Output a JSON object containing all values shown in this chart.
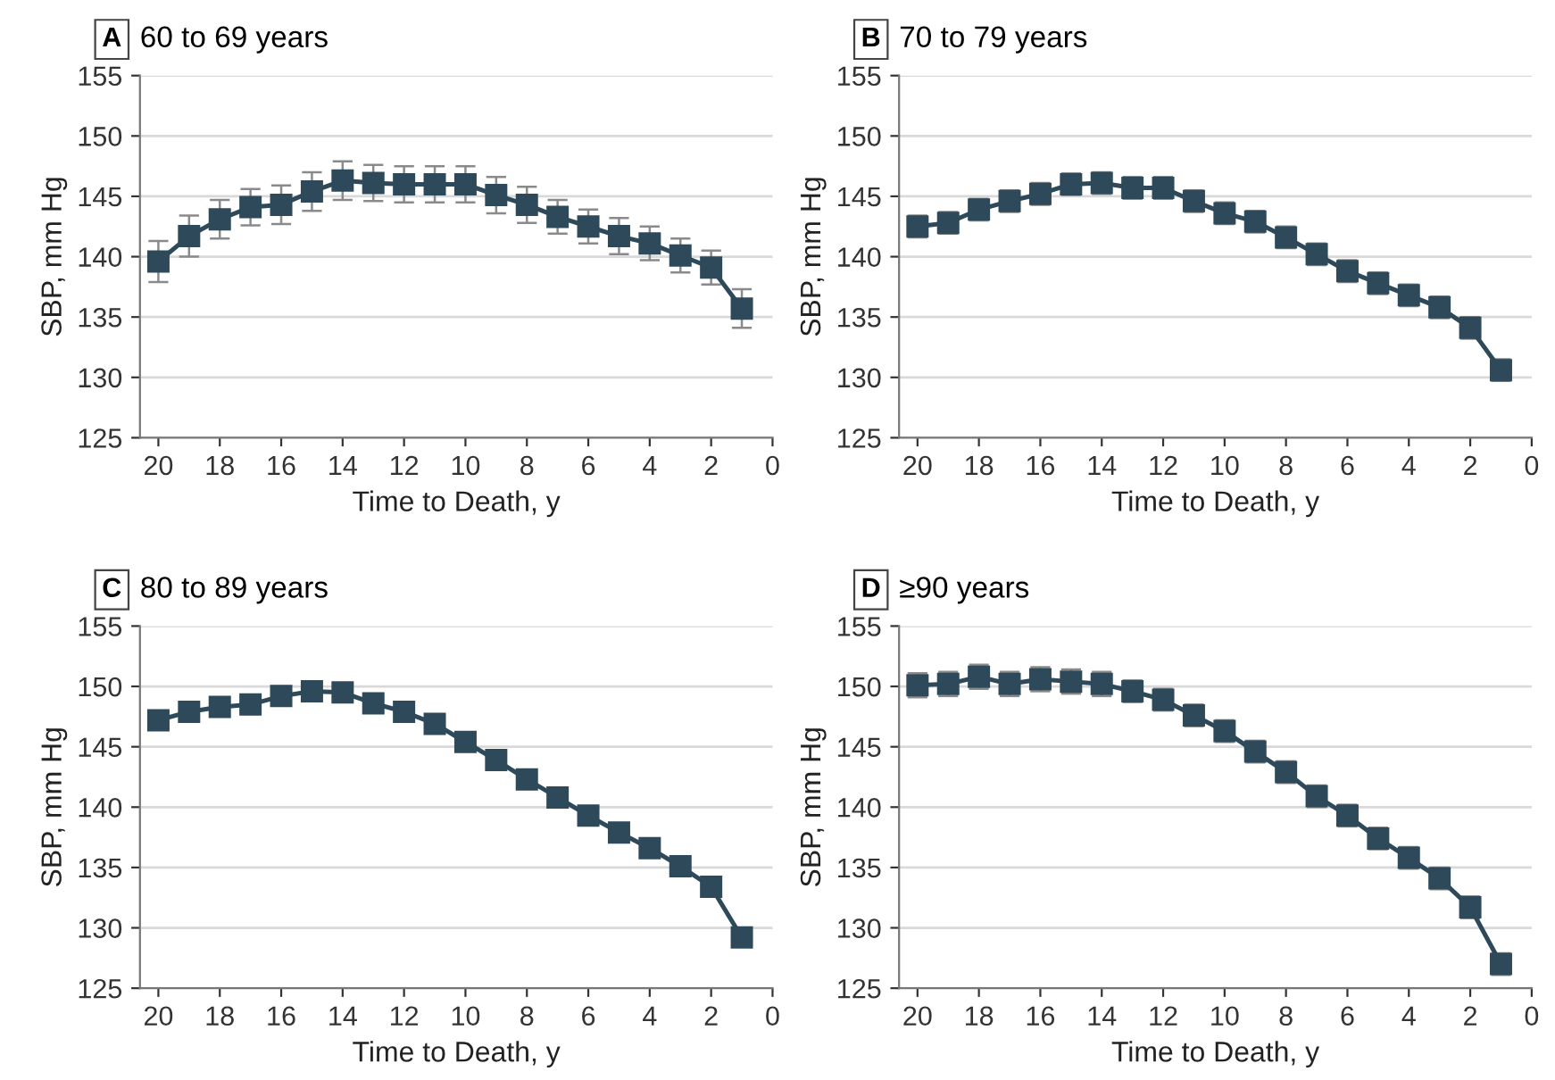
{
  "chart_data": [
    {
      "type": "line",
      "title": "60 to 69 years",
      "annotations": [
        "A"
      ],
      "xlabel": "Time to Death, y",
      "ylabel": "SBP, mm Hg",
      "x": [
        20,
        19,
        18,
        17,
        16,
        15,
        14,
        13,
        12,
        11,
        10,
        9,
        8,
        7,
        6,
        5,
        4,
        3,
        2,
        1
      ],
      "marker": "square",
      "grid": "y",
      "xlim": [
        20.6,
        0
      ],
      "xticks": [
        20,
        18,
        16,
        14,
        12,
        10,
        8,
        6,
        4,
        2,
        0
      ],
      "ylim": [
        125,
        155
      ],
      "yticks": [
        125,
        130,
        135,
        140,
        145,
        150,
        155
      ],
      "series": [
        {
          "color": "#2e4a5a",
          "values": [
            139.6,
            141.7,
            143.1,
            144.1,
            144.3,
            145.4,
            146.3,
            146.1,
            146.0,
            146.0,
            146.0,
            145.1,
            144.3,
            143.3,
            142.5,
            141.7,
            141.1,
            140.1,
            139.1,
            135.7
          ],
          "errors": [
            1.7,
            1.7,
            1.6,
            1.5,
            1.6,
            1.6,
            1.6,
            1.5,
            1.5,
            1.5,
            1.5,
            1.5,
            1.5,
            1.4,
            1.4,
            1.5,
            1.4,
            1.4,
            1.4,
            1.6
          ]
        }
      ]
    },
    {
      "type": "line",
      "title": "70 to 79 years",
      "annotations": [
        "B"
      ],
      "xlabel": "Time to Death, y",
      "ylabel": "SBP, mm Hg",
      "x": [
        20,
        19,
        18,
        17,
        16,
        15,
        14,
        13,
        12,
        11,
        10,
        9,
        8,
        7,
        6,
        5,
        4,
        3,
        2,
        1
      ],
      "marker": "square",
      "grid": "y",
      "xlim": [
        20.6,
        0
      ],
      "xticks": [
        20,
        18,
        16,
        14,
        12,
        10,
        8,
        6,
        4,
        2,
        0
      ],
      "ylim": [
        125,
        155
      ],
      "yticks": [
        125,
        130,
        135,
        140,
        145,
        150,
        155
      ],
      "series": [
        {
          "color": "#2e4a5a",
          "values": [
            142.5,
            142.8,
            143.9,
            144.6,
            145.2,
            146.0,
            146.1,
            145.7,
            145.7,
            144.6,
            143.6,
            142.9,
            141.6,
            140.2,
            138.8,
            137.8,
            136.8,
            135.8,
            134.1,
            130.6
          ],
          "errors": [
            0.9,
            0.9,
            0.9,
            0.9,
            0.9,
            0.9,
            0.9,
            0.9,
            0.9,
            0.9,
            0.9,
            0.9,
            0.9,
            0.9,
            0.9,
            0.9,
            0.9,
            0.9,
            0.9,
            0.9
          ]
        }
      ]
    },
    {
      "type": "line",
      "title": "80 to 89 years",
      "annotations": [
        "C"
      ],
      "xlabel": "Time to Death, y",
      "ylabel": "SBP, mm Hg",
      "x": [
        20,
        19,
        18,
        17,
        16,
        15,
        14,
        13,
        12,
        11,
        10,
        9,
        8,
        7,
        6,
        5,
        4,
        3,
        2,
        1
      ],
      "marker": "square",
      "grid": "y",
      "xlim": [
        20.6,
        0
      ],
      "xticks": [
        20,
        18,
        16,
        14,
        12,
        10,
        8,
        6,
        4,
        2,
        0
      ],
      "ylim": [
        125,
        155
      ],
      "yticks": [
        125,
        130,
        135,
        140,
        145,
        150,
        155
      ],
      "series": [
        {
          "color": "#2e4a5a",
          "values": [
            147.2,
            147.9,
            148.3,
            148.5,
            149.2,
            149.6,
            149.5,
            148.6,
            147.9,
            146.9,
            145.4,
            143.9,
            142.3,
            140.8,
            139.3,
            137.9,
            136.6,
            135.1,
            133.4,
            129.2
          ]
        }
      ]
    },
    {
      "type": "line",
      "title": "≥90 years",
      "annotations": [
        "D"
      ],
      "xlabel": "Time to Death, y",
      "ylabel": "SBP, mm Hg",
      "x": [
        20,
        19,
        18,
        17,
        16,
        15,
        14,
        13,
        12,
        11,
        10,
        9,
        8,
        7,
        6,
        5,
        4,
        3,
        2,
        1
      ],
      "marker": "square",
      "grid": "y",
      "xlim": [
        20.6,
        0
      ],
      "xticks": [
        20,
        18,
        16,
        14,
        12,
        10,
        8,
        6,
        4,
        2,
        0
      ],
      "ylim": [
        125,
        155
      ],
      "yticks": [
        125,
        130,
        135,
        140,
        145,
        150,
        155
      ],
      "series": [
        {
          "color": "#2e4a5a",
          "values": [
            150.1,
            150.2,
            150.8,
            150.2,
            150.6,
            150.4,
            150.2,
            149.6,
            148.9,
            147.6,
            146.3,
            144.6,
            142.9,
            140.9,
            139.3,
            137.4,
            135.8,
            134.1,
            131.7,
            127.0
          ],
          "errors": [
            1.0,
            1.0,
            1.0,
            1.0,
            1.0,
            1.0,
            1.0,
            0.9,
            0.9,
            0.9,
            0.9,
            0.9,
            0.9,
            0.9,
            0.9,
            0.9,
            0.9,
            0.9,
            0.9,
            0.9
          ]
        }
      ]
    }
  ]
}
